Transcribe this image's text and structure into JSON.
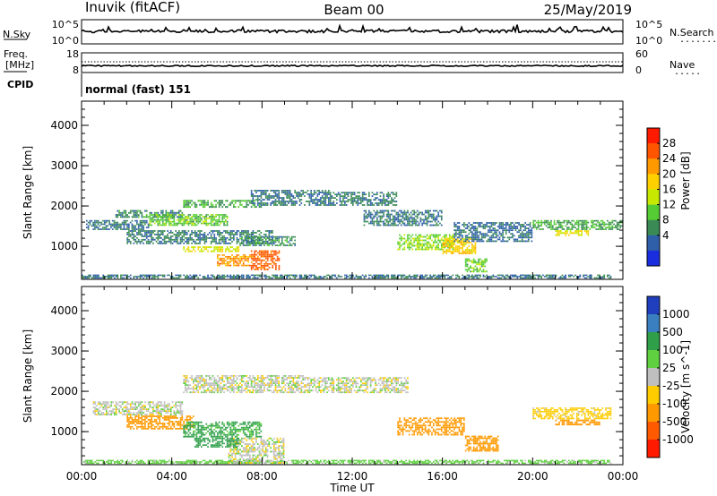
{
  "header": {
    "station": "Inuvik (fitACF)",
    "beam": "Beam 00",
    "date": "25/May/2019"
  },
  "nsky_panel": {
    "left_label": "N.Sky",
    "left_top_tick": "10^5",
    "left_bottom_tick": "10^0",
    "right_label": "N.Search",
    "right_top_tick": "10^5",
    "right_bottom_tick": "10^0",
    "right_dots": "........"
  },
  "freq_panel": {
    "left_label_1": "Freq.",
    "left_label_2": "[MHz]",
    "left_top_tick": "18",
    "left_bottom_tick": "8",
    "right_label": "Nave",
    "right_top_tick": "60",
    "right_bottom_tick": "0",
    "right_dots": "....."
  },
  "cpid": {
    "label": "CPID",
    "value": "normal (fast) 151"
  },
  "power_panel": {
    "ylabel": "Slant Range [km]",
    "yticks": [
      "4000",
      "3000",
      "2000",
      "1000"
    ],
    "colorbar_label": "Power [dB]",
    "colorbar_ticks": [
      "28",
      "24",
      "20",
      "16",
      "12",
      "8",
      "4"
    ],
    "colors": [
      "#ff1a00",
      "#ff5500",
      "#ff9900",
      "#ffd000",
      "#c7e800",
      "#55cc33",
      "#3a8a55",
      "#2e5fa8",
      "#1a2ee0"
    ]
  },
  "velocity_panel": {
    "ylabel": "Slant Range [km]",
    "yticks": [
      "4000",
      "3000",
      "2000",
      "1000"
    ],
    "colorbar_label": "Velocity [m s^-1]",
    "colorbar_ticks": [
      "1000",
      "500",
      "100",
      "25",
      "-25",
      "-100",
      "-500",
      "-1000"
    ],
    "colors": [
      "#1f3fbf",
      "#3a7fbf",
      "#2f9f4a",
      "#5fd040",
      "#bfbfbf",
      "#ffcc00",
      "#ff9900",
      "#ff5a00",
      "#ff1a00"
    ]
  },
  "x_axis": {
    "ticks": [
      "00:00",
      "04:00",
      "08:00",
      "12:00",
      "16:00",
      "20:00",
      "00:00"
    ],
    "label": "Time UT"
  },
  "chart_data": {
    "type": "heatmap",
    "title": "Inuvik (fitACF) Beam 00 25/May/2019",
    "xlabel": "Time UT",
    "ylabel": "Slant Range [km]",
    "x_range_hours": [
      0,
      24
    ],
    "y_range_km": [
      180,
      4600
    ],
    "panels": [
      {
        "name": "Power",
        "unit": "dB",
        "colorbar_ticks": [
          4,
          8,
          12,
          16,
          20,
          24,
          28
        ],
        "blobs": [
          {
            "t0": 0.0,
            "t1": 23.5,
            "r0": 200,
            "r1": 300,
            "value": 8
          },
          {
            "t0": 0.2,
            "t1": 3.0,
            "r0": 1400,
            "r1": 1650,
            "value": 8
          },
          {
            "t0": 1.5,
            "t1": 4.5,
            "r0": 1700,
            "r1": 1900,
            "value": 10
          },
          {
            "t0": 3.0,
            "t1": 6.5,
            "r0": 1500,
            "r1": 1800,
            "value": 14
          },
          {
            "t0": 4.5,
            "t1": 8.0,
            "r0": 1950,
            "r1": 2150,
            "value": 12
          },
          {
            "t0": 2.0,
            "t1": 8.5,
            "r0": 1050,
            "r1": 1400,
            "value": 9
          },
          {
            "t0": 4.5,
            "t1": 7.0,
            "r0": 850,
            "r1": 1000,
            "value": 19
          },
          {
            "t0": 6.0,
            "t1": 7.5,
            "r0": 500,
            "r1": 800,
            "value": 26
          },
          {
            "t0": 7.5,
            "t1": 8.8,
            "r0": 400,
            "r1": 900,
            "value": 30
          },
          {
            "t0": 7.0,
            "t1": 9.5,
            "r0": 1000,
            "r1": 1250,
            "value": 10
          },
          {
            "t0": 7.5,
            "t1": 11.0,
            "r0": 2000,
            "r1": 2400,
            "value": 8
          },
          {
            "t0": 11.0,
            "t1": 14.0,
            "r0": 2000,
            "r1": 2350,
            "value": 9
          },
          {
            "t0": 14.0,
            "t1": 16.5,
            "r0": 900,
            "r1": 1300,
            "value": 16
          },
          {
            "t0": 16.0,
            "t1": 17.5,
            "r0": 800,
            "r1": 1200,
            "value": 22
          },
          {
            "t0": 17.0,
            "t1": 18.0,
            "r0": 350,
            "r1": 700,
            "value": 14
          },
          {
            "t0": 12.5,
            "t1": 16.0,
            "r0": 1500,
            "r1": 1900,
            "value": 8
          },
          {
            "t0": 16.5,
            "t1": 20.0,
            "r0": 1100,
            "r1": 1600,
            "value": 7
          },
          {
            "t0": 20.0,
            "t1": 24.0,
            "r0": 1400,
            "r1": 1650,
            "value": 12
          },
          {
            "t0": 21.0,
            "t1": 22.5,
            "r0": 1250,
            "r1": 1400,
            "value": 20
          }
        ]
      },
      {
        "name": "Velocity",
        "unit": "m s^-1",
        "colorbar_ticks": [
          -1000,
          -500,
          -100,
          -25,
          25,
          100,
          500,
          1000
        ],
        "blobs": [
          {
            "t0": 0.0,
            "t1": 23.5,
            "r0": 200,
            "r1": 300,
            "value": 60
          },
          {
            "t0": 0.5,
            "t1": 4.5,
            "r0": 1400,
            "r1": 1750,
            "value": 0
          },
          {
            "t0": 4.5,
            "t1": 10.0,
            "r0": 1950,
            "r1": 2400,
            "value": 0
          },
          {
            "t0": 10.0,
            "t1": 14.5,
            "r0": 1950,
            "r1": 2350,
            "value": 0
          },
          {
            "t0": 2.0,
            "t1": 5.0,
            "r0": 1050,
            "r1": 1400,
            "value": -150
          },
          {
            "t0": 4.5,
            "t1": 8.0,
            "r0": 850,
            "r1": 1250,
            "value": 120
          },
          {
            "t0": 6.5,
            "t1": 9.0,
            "r0": 200,
            "r1": 850,
            "value": 0
          },
          {
            "t0": 5.0,
            "t1": 7.0,
            "r0": 600,
            "r1": 850,
            "value": 300
          },
          {
            "t0": 14.0,
            "t1": 17.0,
            "r0": 900,
            "r1": 1350,
            "value": -300
          },
          {
            "t0": 17.0,
            "t1": 18.5,
            "r0": 500,
            "r1": 900,
            "value": -150
          },
          {
            "t0": 20.0,
            "t1": 23.5,
            "r0": 1300,
            "r1": 1600,
            "value": -60
          },
          {
            "t0": 21.0,
            "t1": 23.0,
            "r0": 1150,
            "r1": 1300,
            "value": -200
          }
        ]
      }
    ]
  }
}
